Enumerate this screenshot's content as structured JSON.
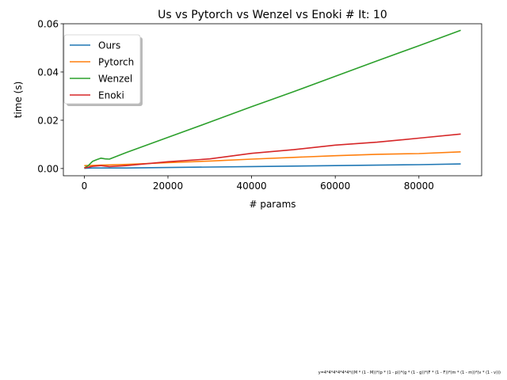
{
  "chart_data": {
    "type": "line",
    "title": "Us vs Pytorch vs Wenzel vs Enoki # It: 10",
    "xlabel": "# params",
    "ylabel": "time (s)",
    "xlim": [
      -5000,
      95000
    ],
    "ylim": [
      -0.003,
      0.06
    ],
    "xticks": [
      0,
      20000,
      40000,
      60000,
      80000
    ],
    "yticks": [
      0.0,
      0.02,
      0.04,
      0.06
    ],
    "xtick_labels": [
      "0",
      "20000",
      "40000",
      "60000",
      "80000"
    ],
    "ytick_labels": [
      "0.00",
      "0.02",
      "0.04",
      "0.06"
    ],
    "grid": false,
    "legend_position": "top-left",
    "series": [
      {
        "name": "Ours",
        "color": "#1f77b4",
        "x": [
          0,
          2000,
          4000,
          6000,
          10000,
          20000,
          30000,
          40000,
          50000,
          60000,
          70000,
          80000,
          90000
        ],
        "y": [
          0.0001,
          0.0002,
          0.0002,
          0.0002,
          0.0002,
          0.0004,
          0.0006,
          0.0008,
          0.001,
          0.0012,
          0.0014,
          0.0016,
          0.0019
        ]
      },
      {
        "name": "Pytorch",
        "color": "#ff7f0e",
        "x": [
          0,
          2000,
          4000,
          6000,
          10000,
          20000,
          30000,
          40000,
          50000,
          60000,
          70000,
          80000,
          90000
        ],
        "y": [
          0.0012,
          0.0013,
          0.0014,
          0.0015,
          0.0017,
          0.0024,
          0.0031,
          0.0039,
          0.0046,
          0.0053,
          0.0059,
          0.0062,
          0.0069
        ]
      },
      {
        "name": "Wenzel",
        "color": "#2ca02c",
        "x": [
          0,
          1000,
          2000,
          3000,
          4000,
          5000,
          6000,
          10000,
          20000,
          30000,
          40000,
          50000,
          60000,
          70000,
          80000,
          90000
        ],
        "y": [
          0.0002,
          0.0013,
          0.003,
          0.0037,
          0.0043,
          0.004,
          0.0039,
          0.0066,
          0.0129,
          0.0192,
          0.0256,
          0.0318,
          0.0382,
          0.0446,
          0.0509,
          0.0573
        ]
      },
      {
        "name": "Enoki",
        "color": "#d62728",
        "x": [
          0,
          2000,
          4000,
          6000,
          10000,
          20000,
          30000,
          40000,
          50000,
          60000,
          70000,
          80000,
          90000
        ],
        "y": [
          0.0002,
          0.0009,
          0.0012,
          0.0008,
          0.0012,
          0.0028,
          0.004,
          0.0063,
          0.0078,
          0.0097,
          0.0109,
          0.0126,
          0.0143
        ]
      }
    ]
  },
  "footnote": "y=4*4*4*4*4*4*((M * (1 - M))*(p * (1 - p))*(g * (1 - g))*(F * (1 - F))*(m * (1 - m))*(v * (1 - v)))"
}
